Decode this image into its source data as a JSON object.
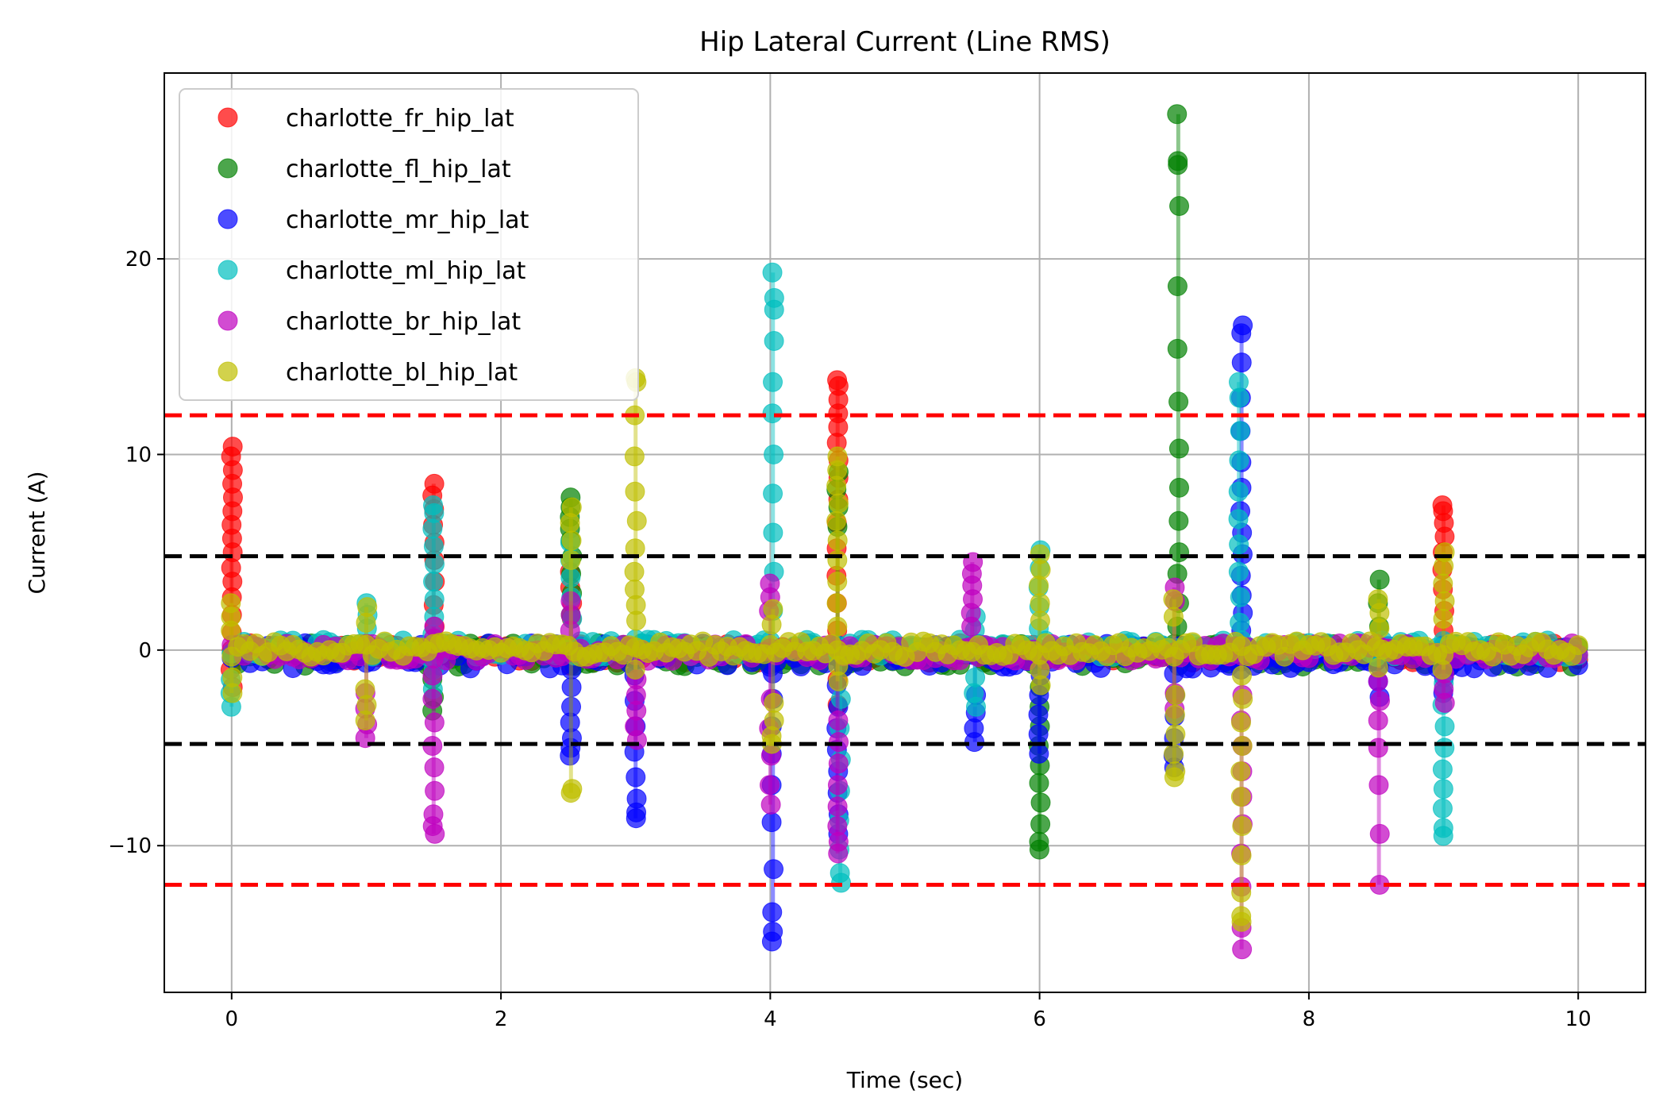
{
  "chart_data": {
    "type": "scatter",
    "title": "Hip Lateral Current (Line RMS)",
    "xlabel": "Time (sec)",
    "ylabel": "Current (A)",
    "xlim": [
      -0.5,
      10.5
    ],
    "ylim": [
      -17.5,
      29.5
    ],
    "xticks": [
      0,
      2,
      4,
      6,
      8,
      10
    ],
    "yticks": [
      -10,
      0,
      10,
      20
    ],
    "ytick_labels": [
      "−10",
      "0",
      "10",
      "20"
    ],
    "grid": true,
    "legend_position": "top-left",
    "reference_lines": [
      {
        "y": 12,
        "color": "#ff0000",
        "style": "dashed"
      },
      {
        "y": -12,
        "color": "#ff0000",
        "style": "dashed"
      },
      {
        "y": 4.8,
        "color": "#000000",
        "style": "dashed"
      },
      {
        "y": -4.8,
        "color": "#000000",
        "style": "dashed"
      }
    ],
    "series": [
      {
        "name": "charlotte_fr_hip_lat",
        "color": "#ff0000",
        "baseline": [
          0,
          -0.3
        ],
        "baseline_range": [
          0,
          10
        ],
        "spikes": [
          {
            "x": 0.0,
            "values": [
              10.4,
              9.9,
              9.2,
              8.5,
              7.8,
              7.1,
              6.4,
              5.7,
              5.0,
              4.2,
              3.5,
              2.7,
              1.8,
              0.9,
              -1.0,
              -1.9
            ]
          },
          {
            "x": 1.5,
            "values": [
              8.5,
              7.9,
              7.2,
              6.4,
              5.5,
              4.6,
              3.5,
              2.3,
              1.2,
              -1.0
            ]
          },
          {
            "x": 2.52,
            "values": [
              4.0,
              3.2,
              2.4,
              1.6,
              -0.8
            ]
          },
          {
            "x": 4.5,
            "values": [
              13.8,
              13.5,
              12.8,
              12.1,
              11.4,
              10.6,
              9.7,
              8.8,
              7.7,
              6.5,
              5.2,
              3.8,
              2.4,
              1.0,
              -1.5,
              -2.8
            ]
          },
          {
            "x": 9.0,
            "values": [
              7.4,
              7.1,
              6.5,
              5.8,
              5.0,
              4.1,
              3.1,
              2.0,
              1.0,
              -0.6
            ]
          }
        ]
      },
      {
        "name": "charlotte_fl_hip_lat",
        "color": "#008000",
        "baseline": [
          0,
          -0.5
        ],
        "baseline_range": [
          0,
          10
        ],
        "spikes": [
          {
            "x": 1.5,
            "values": [
              -3.1,
              -2.4,
              -1.5
            ]
          },
          {
            "x": 2.52,
            "values": [
              7.8,
              7.3,
              6.8,
              6.2,
              5.6,
              4.8,
              3.9,
              2.9,
              1.8
            ]
          },
          {
            "x": 4.5,
            "values": [
              9.1,
              8.2,
              7.3,
              6.3
            ]
          },
          {
            "x": 6.0,
            "values": [
              -10.2,
              -9.8,
              -8.9,
              -7.8,
              -6.8,
              -5.9,
              -4.9,
              -3.9,
              -2.9,
              -1.9
            ]
          },
          {
            "x": 7.03,
            "values": [
              27.4,
              25.0,
              24.8,
              22.7,
              18.6,
              15.4,
              12.7,
              10.3,
              8.3,
              6.6,
              5.0,
              3.9,
              2.4,
              1.2,
              -0.8
            ]
          },
          {
            "x": 8.52,
            "values": [
              3.6,
              2.4,
              1.2
            ]
          }
        ]
      },
      {
        "name": "charlotte_mr_hip_lat",
        "color": "#0000ff",
        "baseline": [
          0,
          -0.6
        ],
        "baseline_range": [
          0,
          10
        ],
        "spikes": [
          {
            "x": 2.52,
            "values": [
              -5.4,
              -5.0,
              -4.5,
              -3.7,
              -2.9,
              -1.9,
              -1.0
            ]
          },
          {
            "x": 3.0,
            "values": [
              -8.6,
              -8.3,
              -7.6,
              -6.5,
              -5.2,
              -3.9,
              -2.6,
              -1.3
            ]
          },
          {
            "x": 4.02,
            "values": [
              -14.9,
              -14.4,
              -13.4,
              -11.2,
              -8.8,
              -6.9,
              -5.3,
              -3.9,
              -2.5,
              -1.2
            ]
          },
          {
            "x": 4.5,
            "values": [
              -9.4,
              -8.4,
              -7.3,
              -6.2,
              -5.1,
              -4.0,
              -2.9,
              -1.8
            ]
          },
          {
            "x": 5.52,
            "values": [
              -4.7,
              -4.0,
              -3.2,
              -2.3
            ]
          },
          {
            "x": 6.0,
            "values": [
              -5.3,
              -4.3,
              -3.3,
              -2.3,
              -1.3
            ]
          },
          {
            "x": 7.0,
            "values": [
              -6.0,
              -5.4,
              -4.5,
              -3.4,
              -2.3,
              -1.2
            ]
          },
          {
            "x": 7.5,
            "values": [
              16.6,
              16.2,
              14.7,
              12.9,
              11.2,
              9.6,
              8.3,
              7.1,
              6.0,
              4.9,
              3.8,
              2.8,
              1.9,
              1.0,
              -1.0
            ]
          },
          {
            "x": 8.52,
            "values": [
              -2.4,
              -1.6,
              -0.8
            ]
          },
          {
            "x": 9.0,
            "values": [
              -2.2,
              -1.4
            ]
          }
        ]
      },
      {
        "name": "charlotte_ml_hip_lat",
        "color": "#00bfbf",
        "baseline": [
          0,
          0.2
        ],
        "baseline_range": [
          0,
          10
        ],
        "spikes": [
          {
            "x": 0.0,
            "values": [
              -2.9,
              -2.2,
              -1.5
            ]
          },
          {
            "x": 1.0,
            "values": [
              2.4,
              1.8,
              1.1
            ]
          },
          {
            "x": 1.5,
            "values": [
              7.4,
              7.0,
              6.2,
              5.3,
              4.4,
              3.5,
              2.6,
              1.7,
              0.8,
              -1.0,
              -2.0
            ]
          },
          {
            "x": 2.52,
            "values": [
              5.5,
              4.6,
              3.7,
              2.7,
              1.6
            ]
          },
          {
            "x": 4.02,
            "values": [
              19.3,
              18.0,
              17.4,
              15.8,
              13.7,
              12.1,
              10.0,
              8.0,
              6.0,
              4.0,
              2.0
            ]
          },
          {
            "x": 4.52,
            "values": [
              -11.9,
              -11.4,
              -10.2,
              -8.7,
              -7.2,
              -5.6,
              -4.0,
              -2.5
            ]
          },
          {
            "x": 5.52,
            "values": [
              -2.9,
              -2.2,
              -1.4,
              1.0,
              1.7
            ]
          },
          {
            "x": 6.0,
            "values": [
              5.1,
              4.2,
              3.2,
              2.2,
              1.1
            ]
          },
          {
            "x": 7.48,
            "values": [
              13.7,
              12.9,
              11.2,
              9.7,
              8.1,
              6.7,
              5.4,
              4.0,
              2.7,
              1.4
            ]
          },
          {
            "x": 9.0,
            "values": [
              -9.5,
              -9.1,
              -8.1,
              -7.1,
              -6.1,
              -5.0,
              -3.9,
              -2.8,
              -1.7
            ]
          }
        ]
      },
      {
        "name": "charlotte_br_hip_lat",
        "color": "#bf00bf",
        "baseline": [
          0,
          -0.2
        ],
        "baseline_range": [
          0,
          10
        ],
        "spikes": [
          {
            "x": 1.0,
            "values": [
              -4.5,
              -3.8,
              -3.0,
              -2.2
            ]
          },
          {
            "x": 1.5,
            "values": [
              -9.4,
              -9.0,
              -8.4,
              -7.2,
              -6.0,
              -4.9,
              -3.7,
              -2.5,
              -1.3,
              0.6,
              1.2
            ]
          },
          {
            "x": 2.52,
            "values": [
              2.5,
              1.8,
              1.0
            ]
          },
          {
            "x": 3.0,
            "values": [
              -4.6,
              -3.9,
              -3.1,
              -2.3,
              -1.5
            ]
          },
          {
            "x": 4.0,
            "values": [
              3.4,
              2.7,
              2.0,
              -7.9,
              -6.9,
              -5.4,
              -4.0,
              -2.5
            ]
          },
          {
            "x": 4.5,
            "values": [
              -10.4,
              -9.8,
              -9.0,
              -8.0,
              -6.9,
              -5.8,
              -4.7,
              -3.6
            ]
          },
          {
            "x": 5.5,
            "values": [
              4.5,
              3.9,
              3.3,
              2.6,
              1.9,
              1.2
            ]
          },
          {
            "x": 7.0,
            "values": [
              3.2,
              2.5,
              -3.0,
              -2.2
            ]
          },
          {
            "x": 7.5,
            "values": [
              -15.3,
              -14.2,
              -12.1,
              -10.4,
              -8.9,
              -7.5,
              -6.2,
              -4.9,
              -3.6,
              -2.3
            ]
          },
          {
            "x": 8.52,
            "values": [
              -12.0,
              -9.4,
              -6.9,
              -5.0,
              -3.6,
              -2.6,
              -1.6
            ]
          },
          {
            "x": 9.0,
            "values": [
              -2.7,
              -2.0,
              -1.2
            ]
          }
        ]
      },
      {
        "name": "charlotte_bl_hip_lat",
        "color": "#bfbf00",
        "baseline": [
          0,
          0.1
        ],
        "baseline_range": [
          0,
          10
        ],
        "spikes": [
          {
            "x": 0.0,
            "values": [
              2.4,
              1.7,
              1.0,
              -1.4,
              -2.2
            ]
          },
          {
            "x": 1.0,
            "values": [
              -3.6,
              -2.8,
              -2.0,
              2.2,
              1.4
            ]
          },
          {
            "x": 2.52,
            "values": [
              -7.3,
              -7.1,
              7.3,
              6.5,
              5.6,
              4.6
            ]
          },
          {
            "x": 3.0,
            "values": [
              13.9,
              13.7,
              12.0,
              9.9,
              8.1,
              6.6,
              5.2,
              4.0,
              3.1,
              2.3,
              1.5,
              -1.0
            ]
          },
          {
            "x": 4.02,
            "values": [
              -4.8,
              -4.4,
              -3.6,
              -2.7,
              2.1,
              1.3
            ]
          },
          {
            "x": 4.5,
            "values": [
              9.9,
              9.2,
              8.4,
              7.5,
              6.6,
              5.6,
              4.6,
              3.5,
              2.4,
              1.2,
              -0.8,
              -1.6
            ]
          },
          {
            "x": 6.0,
            "values": [
              4.9,
              4.1,
              3.3,
              2.4,
              1.5,
              -1.0,
              -1.8
            ]
          },
          {
            "x": 7.0,
            "values": [
              -6.5,
              -6.2,
              -5.3,
              -4.3,
              -3.3,
              -2.3,
              2.6,
              1.7
            ]
          },
          {
            "x": 7.5,
            "values": [
              -13.9,
              -13.6,
              -12.4,
              -10.5,
              -9.0,
              -7.5,
              -6.2,
              -4.9,
              -3.7,
              -2.5,
              -1.3
            ]
          },
          {
            "x": 8.52,
            "values": [
              2.6,
              1.9,
              1.1,
              -0.9
            ]
          },
          {
            "x": 9.0,
            "values": [
              5.0,
              4.3,
              3.4,
              2.5,
              1.6,
              -1.0
            ]
          }
        ]
      }
    ]
  }
}
